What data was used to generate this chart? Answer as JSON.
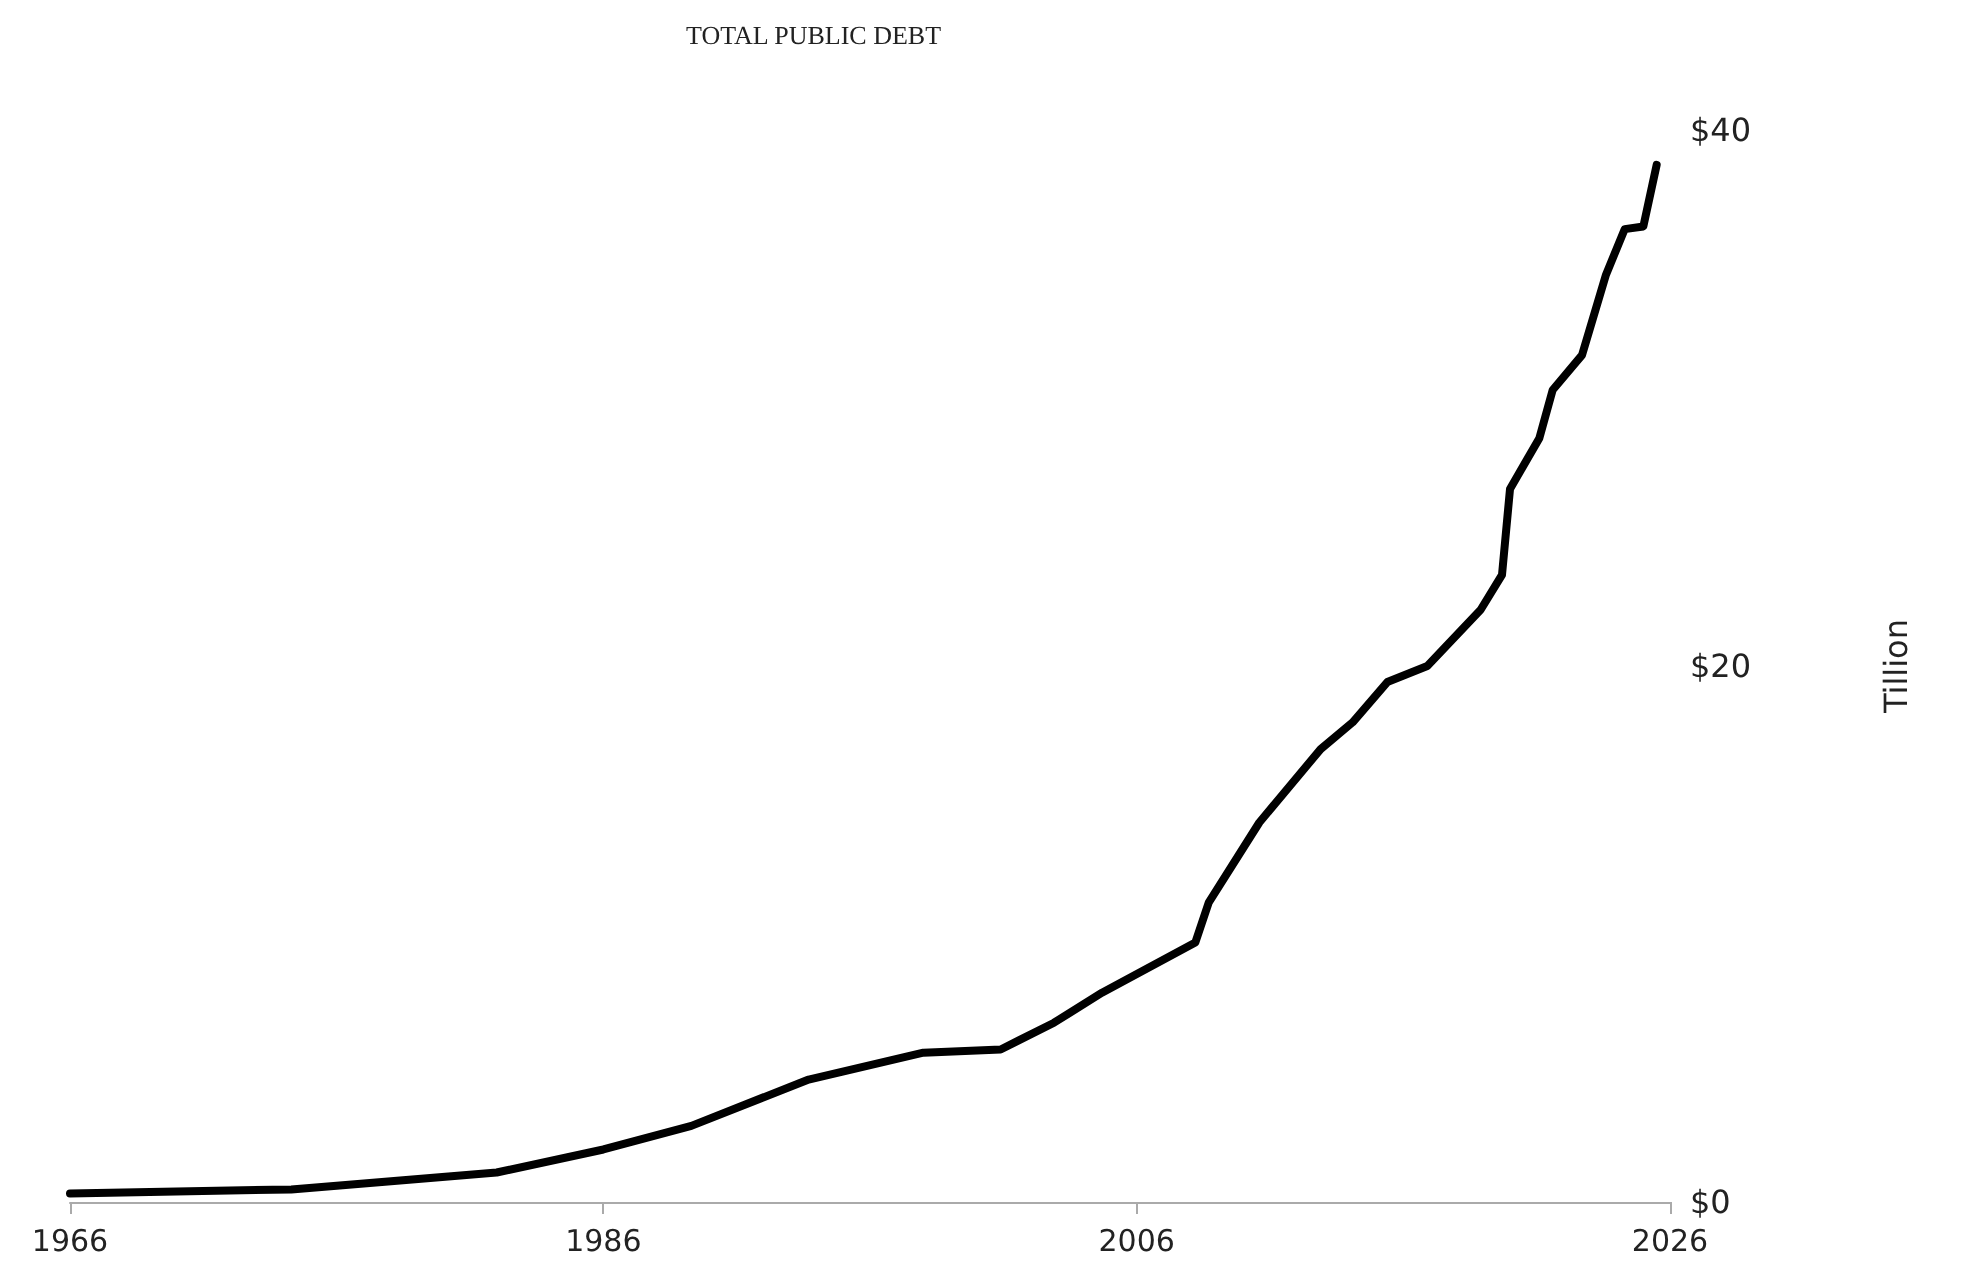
{
  "chart_data": {
    "type": "line",
    "title": "TOTAL PUBLIC DEBT",
    "ylabel": "Tillion",
    "xlim": [
      1966,
      2026
    ],
    "xticks": [
      1966,
      1986,
      2006,
      2026
    ],
    "ylim": [
      0,
      40
    ],
    "yticks": [
      {
        "value": 0,
        "label": "$0"
      },
      {
        "value": 20,
        "label": "$20"
      },
      {
        "value": 40,
        "label": "$40"
      }
    ],
    "series": [
      {
        "color": "#000000",
        "x": [
          1966.0,
          1974.3,
          1982.0,
          1986.0,
          1989.3,
          1993.7,
          1998.0,
          2000.9,
          2002.9,
          2004.7,
          2008.2,
          2008.7,
          2010.6,
          2012.9,
          2014.1,
          2015.4,
          2016.9,
          2018.9,
          2019.7,
          2020.0,
          2021.1,
          2021.6,
          2022.7,
          2023.6,
          2024.3,
          2025.0,
          2025.5
        ],
        "values": [
          0.32,
          0.47,
          1.1,
          1.96,
          2.84,
          4.57,
          5.57,
          5.69,
          6.69,
          7.81,
          9.68,
          11.17,
          14.16,
          16.9,
          17.9,
          19.4,
          20.0,
          22.1,
          23.4,
          26.6,
          28.5,
          30.3,
          31.6,
          34.6,
          36.3,
          36.4,
          38.7
        ]
      }
    ],
    "grid": false,
    "marker": "none",
    "line_style": "solid"
  }
}
